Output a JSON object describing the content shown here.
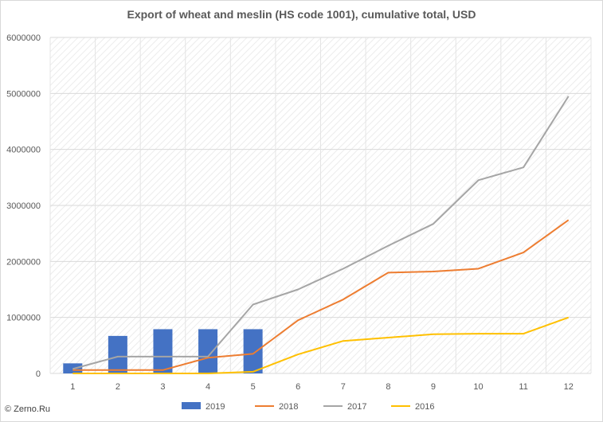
{
  "chart_data": {
    "type": "bar+line",
    "title": "Export of wheat and meslin (HS code 1001), cumulative total, USD",
    "categories": [
      "1",
      "2",
      "3",
      "4",
      "5",
      "6",
      "7",
      "8",
      "9",
      "10",
      "11",
      "12"
    ],
    "ylim": [
      0,
      6000000
    ],
    "yticks": [
      "0",
      "1000000",
      "2000000",
      "3000000",
      "4000000",
      "5000000",
      "6000000"
    ],
    "grid": true,
    "legend_position": "bottom",
    "series": [
      {
        "name": "2019",
        "kind": "bar",
        "color": "#4472c4",
        "values": [
          180000,
          670000,
          790000,
          790000,
          790000,
          null,
          null,
          null,
          null,
          null,
          null,
          null
        ]
      },
      {
        "name": "2018",
        "kind": "line",
        "color": "#ed7d31",
        "values": [
          60000,
          60000,
          60000,
          280000,
          350000,
          950000,
          1320000,
          1800000,
          1820000,
          1870000,
          2160000,
          2740000
        ]
      },
      {
        "name": "2017",
        "kind": "line",
        "color": "#a5a5a5",
        "values": [
          80000,
          300000,
          300000,
          300000,
          1230000,
          1500000,
          1870000,
          2280000,
          2670000,
          3450000,
          3680000,
          4950000
        ]
      },
      {
        "name": "2016",
        "kind": "line",
        "color": "#ffc000",
        "values": [
          0,
          0,
          0,
          0,
          30000,
          340000,
          580000,
          640000,
          700000,
          710000,
          710000,
          1000000
        ]
      }
    ]
  },
  "footer": {
    "source": "© Zerno.Ru"
  }
}
